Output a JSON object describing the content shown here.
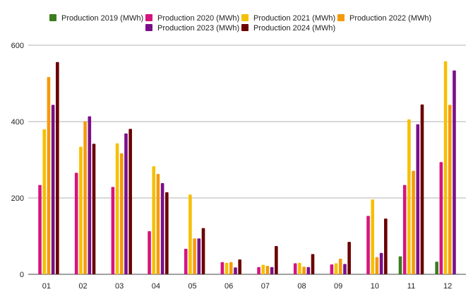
{
  "chart_data": {
    "type": "bar",
    "categories": [
      "01",
      "02",
      "03",
      "04",
      "05",
      "06",
      "07",
      "08",
      "09",
      "10",
      "11",
      "12"
    ],
    "series": [
      {
        "name": "Production 2019 (MWh)",
        "color": "#3a7d1e",
        "values": [
          0,
          0,
          0,
          0,
          0,
          0,
          0,
          0,
          0,
          0,
          47,
          33
        ]
      },
      {
        "name": "Production 2020 (MWh)",
        "color": "#d6147e",
        "values": [
          234,
          266,
          229,
          113,
          67,
          32,
          19,
          29,
          26,
          153,
          234,
          294
        ]
      },
      {
        "name": "Production 2021 (MWh)",
        "color": "#f5c000",
        "values": [
          380,
          334,
          343,
          283,
          209,
          30,
          25,
          30,
          29,
          196,
          406,
          558
        ]
      },
      {
        "name": "Production 2022 (MWh)",
        "color": "#f59a0b",
        "values": [
          517,
          401,
          317,
          263,
          94,
          32,
          22,
          20,
          41,
          45,
          271,
          444
        ]
      },
      {
        "name": "Production 2023 (MWh)",
        "color": "#7a0f8a",
        "values": [
          444,
          414,
          369,
          239,
          94,
          18,
          19,
          19,
          27,
          56,
          393,
          534
        ]
      },
      {
        "name": "Production 2024 (MWh)",
        "color": "#6b0000",
        "values": [
          556,
          342,
          381,
          215,
          121,
          39,
          74,
          53,
          85,
          146,
          445,
          0
        ]
      }
    ],
    "y_ticks": [
      "0",
      "200",
      "400",
      "600"
    ],
    "ylim": [
      0,
      600
    ],
    "grid": true,
    "legend_position": "top"
  }
}
